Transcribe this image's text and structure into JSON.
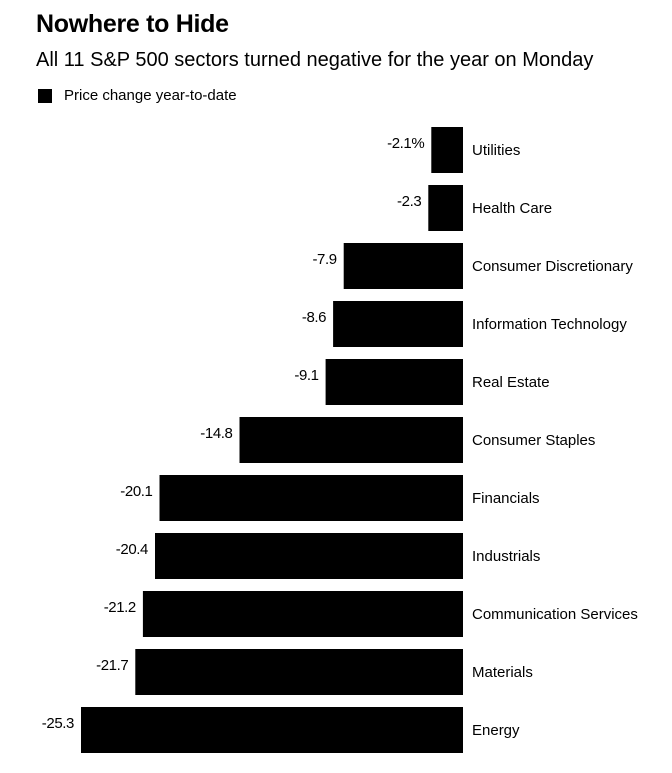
{
  "header": {
    "title": "Nowhere to Hide",
    "subtitle": "All 11 S&P 500 sectors turned negative for the year on Monday"
  },
  "legend": {
    "label": "Price change year-to-date",
    "color": "#000000"
  },
  "chart_data": {
    "type": "bar",
    "orientation": "horizontal",
    "title": "Nowhere to Hide",
    "subtitle": "All 11 S&P 500 sectors turned negative for the year on Monday",
    "xlabel": "",
    "ylabel": "",
    "unit": "%",
    "xlim": [
      -25.3,
      0
    ],
    "categories": [
      "Utilities",
      "Health Care",
      "Consumer Discretionary",
      "Information Technology",
      "Real Estate",
      "Consumer Staples",
      "Financials",
      "Industrials",
      "Communication Services",
      "Materials",
      "Energy"
    ],
    "series": [
      {
        "name": "Price change year-to-date",
        "color": "#000000",
        "values": [
          -2.1,
          -2.3,
          -7.9,
          -8.6,
          -9.1,
          -14.8,
          -20.1,
          -20.4,
          -21.2,
          -21.7,
          -25.3
        ],
        "labels": [
          "-2.1%",
          "-2.3",
          "-7.9",
          "-8.6",
          "-9.1",
          "-14.8",
          "-20.1",
          "-20.4",
          "-21.2",
          "-21.7",
          "-25.3"
        ]
      }
    ]
  }
}
